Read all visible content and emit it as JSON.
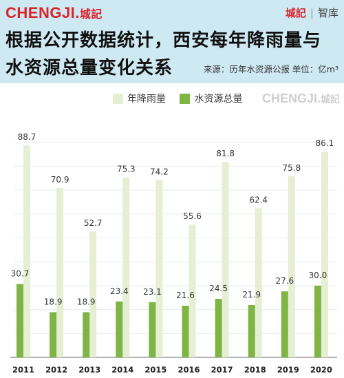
{
  "header": {
    "logo_text": "CHENGJI.",
    "logo_cn": "城記",
    "brand_red": "城記",
    "brand_sep": "|",
    "brand_text": "智库",
    "title_line1": "根据公开数据统计，西安每年降雨量与",
    "title_line2": "水资源总量变化关系",
    "source": "来源：历年水资源公报  单位：亿m³"
  },
  "watermark": {
    "text": "CHENGJI.",
    "cn": "城記"
  },
  "colors": {
    "rain": "#e4efd3",
    "water": "#7fb545",
    "header_bg": "#cfe9f3",
    "brand": "#d9232b"
  },
  "chart_data": {
    "type": "bar",
    "categories": [
      "2011",
      "2012",
      "2013",
      "2014",
      "2015",
      "2016",
      "2017",
      "2018",
      "2019",
      "2020"
    ],
    "series": [
      {
        "name": "年降雨量",
        "values": [
          88.7,
          70.9,
          52.7,
          75.3,
          74.2,
          55.6,
          81.8,
          62.4,
          75.8,
          86.1
        ]
      },
      {
        "name": "水资源总量",
        "values": [
          30.7,
          18.9,
          18.9,
          23.4,
          23.1,
          21.6,
          24.5,
          21.9,
          27.6,
          30.0
        ]
      }
    ],
    "legend": "top",
    "grid": true,
    "ylim": [
      0,
      100
    ]
  }
}
